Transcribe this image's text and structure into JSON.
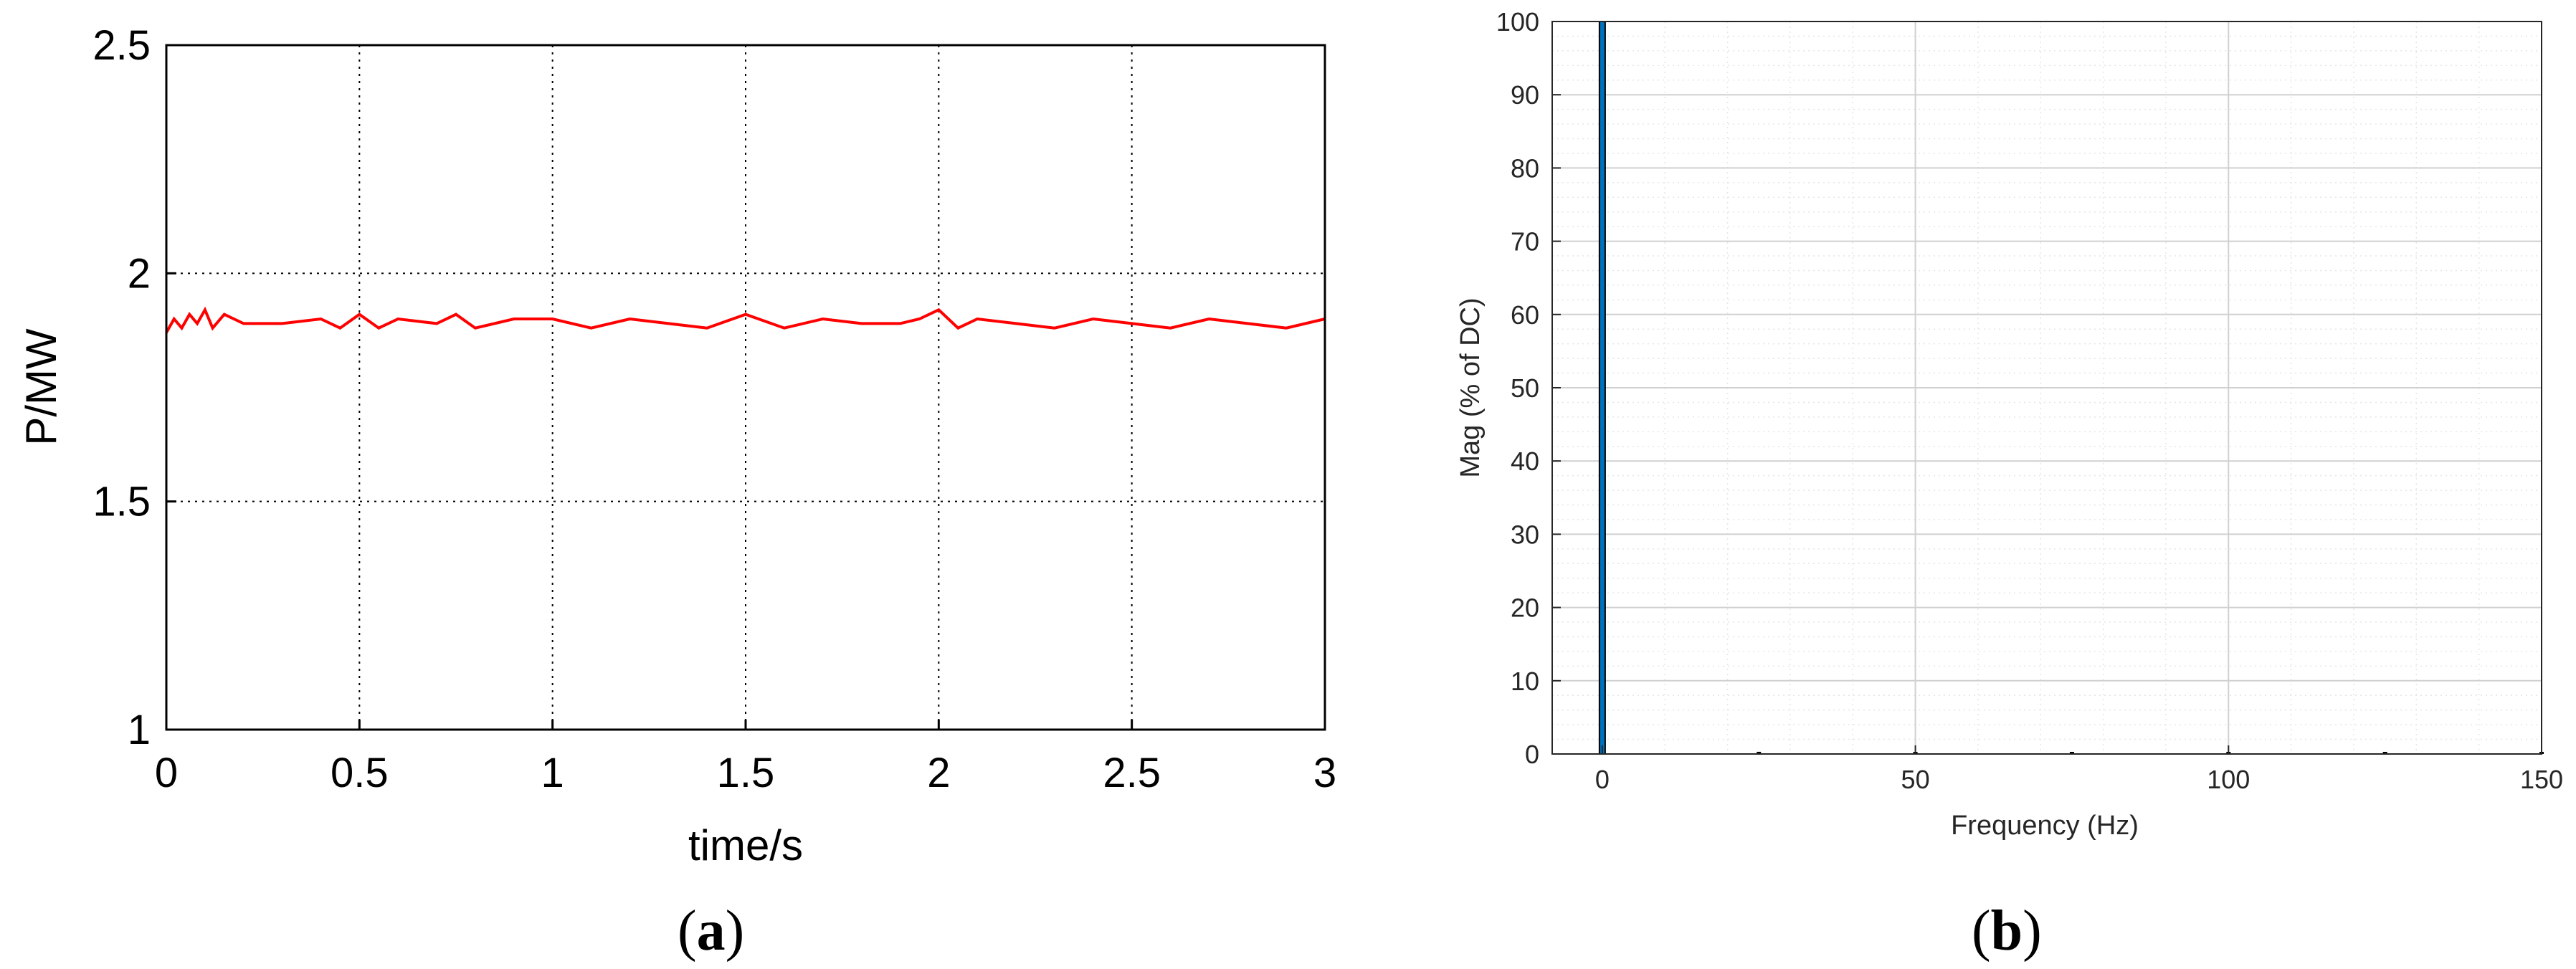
{
  "chart_data": [
    {
      "type": "line",
      "caption_letter": "a",
      "xlabel": "time/s",
      "ylabel": "P/MW",
      "xlim": [
        0,
        3
      ],
      "ylim": [
        1,
        2.5
      ],
      "x_ticks": [
        "0",
        "0.5",
        "1",
        "1.5",
        "2",
        "2.5",
        "3"
      ],
      "y_ticks": [
        "1",
        "1.5",
        "2",
        "2.5"
      ],
      "grid": "dotted",
      "series": [
        {
          "color": "#ff0000",
          "x": [
            0,
            0.02,
            0.04,
            0.06,
            0.08,
            0.1,
            0.12,
            0.15,
            0.2,
            0.3,
            0.4,
            0.45,
            0.5,
            0.55,
            0.6,
            0.7,
            0.75,
            0.8,
            0.9,
            1.0,
            1.1,
            1.2,
            1.3,
            1.4,
            1.5,
            1.6,
            1.7,
            1.8,
            1.9,
            1.95,
            2.0,
            2.05,
            2.1,
            2.2,
            2.3,
            2.4,
            2.5,
            2.6,
            2.7,
            2.8,
            2.9,
            3.0
          ],
          "y": [
            1.87,
            1.9,
            1.88,
            1.91,
            1.89,
            1.92,
            1.88,
            1.91,
            1.89,
            1.89,
            1.9,
            1.88,
            1.91,
            1.88,
            1.9,
            1.89,
            1.91,
            1.88,
            1.9,
            1.9,
            1.88,
            1.9,
            1.89,
            1.88,
            1.91,
            1.88,
            1.9,
            1.89,
            1.89,
            1.9,
            1.92,
            1.88,
            1.9,
            1.89,
            1.88,
            1.9,
            1.89,
            1.88,
            1.9,
            1.89,
            1.88,
            1.9
          ]
        }
      ]
    },
    {
      "type": "bar",
      "caption_letter": "b",
      "xlabel": "Frequency (Hz)",
      "ylabel": "Mag (% of DC)",
      "xlim": [
        -8,
        150
      ],
      "ylim": [
        0,
        100
      ],
      "x_ticks": [
        "0",
        "50",
        "100",
        "150"
      ],
      "y_ticks": [
        "0",
        "10",
        "20",
        "30",
        "40",
        "50",
        "60",
        "70",
        "80",
        "90",
        "100"
      ],
      "grid": "major and minor",
      "bar_color": "#0072bd",
      "x": [
        0,
        25,
        50,
        75,
        100,
        125,
        150
      ],
      "values": [
        100,
        0.3,
        0.2,
        0.2,
        0.1,
        0.1,
        0.05
      ]
    }
  ]
}
